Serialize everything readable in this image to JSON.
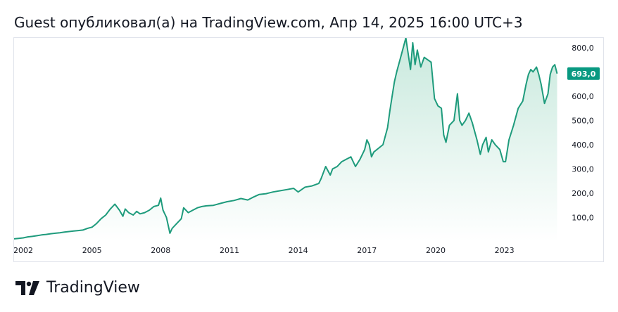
{
  "header": {
    "title": "Guest опубликовал(а) на TradingView.com, Апр 14, 2025 16:00 UTC+3"
  },
  "brand": {
    "name": "TradingView",
    "logo_icon": "tradingview-logo-icon"
  },
  "colors": {
    "line": "#1e9b7c",
    "fill_top": "#c8e9dd",
    "fill_bottom": "#ffffff",
    "price_badge_bg": "#089981",
    "price_badge_text": "#ffffff",
    "axis_text": "#131722",
    "border": "#e0e3eb"
  },
  "chart_data": {
    "type": "area",
    "title": "",
    "xlabel": "",
    "ylabel": "",
    "x_ticks": [
      "2002",
      "2005",
      "2008",
      "2011",
      "2014",
      "2017",
      "2020",
      "2023"
    ],
    "x_tick_years": [
      2002,
      2005,
      2008,
      2011,
      2014,
      2017,
      2020,
      2023
    ],
    "y_ticks": [
      "100,0",
      "200,0",
      "300,0",
      "400,0",
      "500,0",
      "600,0",
      "800,0"
    ],
    "y_tick_values": [
      100,
      200,
      300,
      400,
      500,
      600,
      800
    ],
    "ylim": [
      0,
      840
    ],
    "xlim": [
      2001.6,
      2025.5
    ],
    "last_price": 693,
    "last_price_label": "693,0",
    "series": [
      {
        "name": "price",
        "x": [
          2001.6,
          2001.8,
          2002.0,
          2002.2,
          2002.4,
          2002.6,
          2002.8,
          2003.0,
          2003.2,
          2003.4,
          2003.6,
          2003.8,
          2004.0,
          2004.2,
          2004.4,
          2004.6,
          2004.8,
          2005.0,
          2005.2,
          2005.4,
          2005.6,
          2005.8,
          2006.0,
          2006.2,
          2006.35,
          2006.45,
          2006.6,
          2006.8,
          2006.95,
          2007.1,
          2007.3,
          2007.5,
          2007.7,
          2007.9,
          2008.0,
          2008.1,
          2008.25,
          2008.4,
          2008.5,
          2008.7,
          2008.9,
          2009.0,
          2009.2,
          2009.4,
          2009.6,
          2009.8,
          2010.0,
          2010.3,
          2010.6,
          2010.9,
          2011.2,
          2011.5,
          2011.8,
          2012.0,
          2012.3,
          2012.6,
          2012.9,
          2013.2,
          2013.5,
          2013.8,
          2014.0,
          2014.3,
          2014.6,
          2014.9,
          2015.0,
          2015.2,
          2015.4,
          2015.5,
          2015.7,
          2015.9,
          2016.1,
          2016.3,
          2016.5,
          2016.7,
          2016.9,
          2017.0,
          2017.1,
          2017.2,
          2017.3,
          2017.5,
          2017.7,
          2017.9,
          2018.0,
          2018.1,
          2018.2,
          2018.3,
          2018.5,
          2018.7,
          2018.9,
          2019.0,
          2019.1,
          2019.2,
          2019.35,
          2019.5,
          2019.65,
          2019.8,
          2019.95,
          2020.1,
          2020.25,
          2020.35,
          2020.45,
          2020.6,
          2020.8,
          2020.95,
          2021.05,
          2021.15,
          2021.3,
          2021.45,
          2021.6,
          2021.8,
          2021.95,
          2022.05,
          2022.2,
          2022.3,
          2022.45,
          2022.6,
          2022.8,
          2022.95,
          2023.05,
          2023.2,
          2023.4,
          2023.6,
          2023.8,
          2023.95,
          2024.05,
          2024.15,
          2024.25,
          2024.4,
          2024.5,
          2024.6,
          2024.75,
          2024.9,
          2025.0,
          2025.1,
          2025.2,
          2025.3
        ],
        "values": [
          12,
          14,
          16,
          20,
          22,
          25,
          28,
          30,
          33,
          35,
          37,
          40,
          42,
          44,
          46,
          48,
          55,
          60,
          75,
          95,
          110,
          135,
          155,
          130,
          105,
          135,
          120,
          110,
          125,
          115,
          120,
          130,
          145,
          150,
          180,
          130,
          100,
          35,
          55,
          75,
          95,
          140,
          120,
          130,
          140,
          145,
          148,
          150,
          158,
          165,
          170,
          178,
          172,
          182,
          195,
          198,
          205,
          210,
          215,
          220,
          205,
          225,
          230,
          240,
          260,
          310,
          275,
          300,
          310,
          330,
          340,
          350,
          310,
          340,
          380,
          420,
          400,
          350,
          370,
          385,
          400,
          470,
          540,
          600,
          660,
          700,
          770,
          840,
          710,
          820,
          730,
          790,
          720,
          760,
          750,
          740,
          590,
          560,
          550,
          440,
          410,
          480,
          500,
          610,
          500,
          480,
          500,
          530,
          490,
          420,
          360,
          400,
          430,
          370,
          420,
          400,
          380,
          330,
          330,
          420,
          480,
          550,
          580,
          650,
          690,
          710,
          700,
          720,
          690,
          650,
          570,
          610,
          690,
          720,
          730,
          693
        ]
      }
    ]
  }
}
